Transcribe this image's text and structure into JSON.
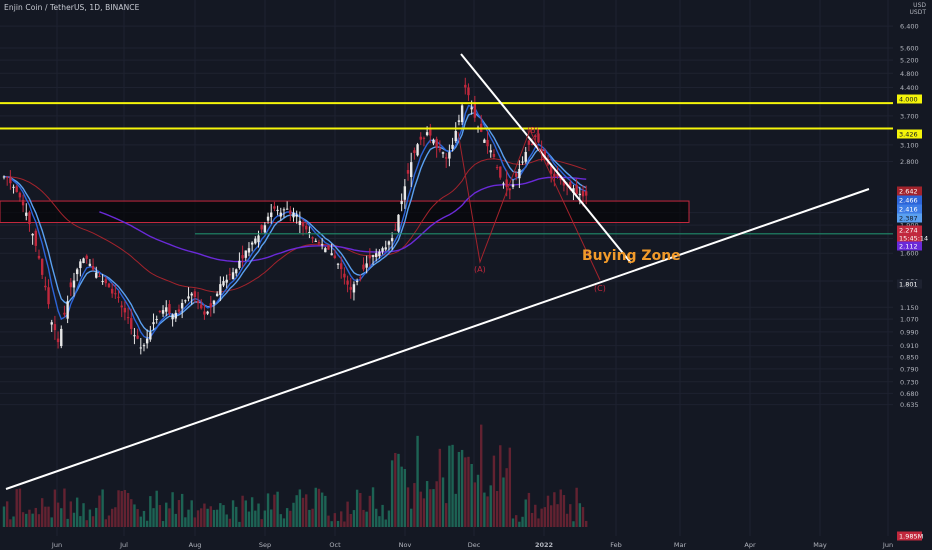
{
  "header": {
    "title": "Enjin Coin / TetherUS, 1D, BINANCE"
  },
  "currency": [
    "USD",
    "USDT"
  ],
  "colors": {
    "background": "#141823",
    "grid": "#1e2230",
    "up": "#e8e8e8",
    "down": "#c1283d",
    "level": "#f5f50a",
    "trendline": "#ffffff",
    "ema_fast": "#2c64d8",
    "ema_mid": "#5aa0f0",
    "ma_red": "#a3232c",
    "ma_purple": "#6a2ad8",
    "zone": "#c1283d",
    "annotation": "#f19a2a",
    "support": "#1e8a6a"
  },
  "chart_data": {
    "type": "candlestick",
    "title": "Enjin Coin / TetherUS, 1D, BINANCE",
    "scale": "log",
    "ylim": [
      0.62,
      6.9
    ],
    "x_ticks": [
      "Jun",
      "Jul",
      "Aug",
      "Sep",
      "Oct",
      "Nov",
      "Dec",
      "2022",
      "Feb",
      "Mar",
      "Apr",
      "May",
      "Jun"
    ],
    "y_ticks": [
      "6.400",
      "5.600",
      "5.200",
      "4.800",
      "4.400",
      "3.700",
      "3.100",
      "2.800",
      "2.050",
      "1.900",
      "1.750",
      "1.600",
      "1.350",
      "1.150",
      "1.070",
      "0.990",
      "0.910",
      "0.850",
      "0.790",
      "0.730",
      "0.680",
      "0.635"
    ],
    "price_tags": [
      {
        "value": "4.000",
        "bg": "#f5f50a",
        "fg": "#141823"
      },
      {
        "value": "3.426",
        "bg": "#f5f50a",
        "fg": "#141823"
      },
      {
        "value": "2.642",
        "bg": "#a3232c",
        "fg": "#ffffff"
      },
      {
        "value": "2.466",
        "bg": "#2c64d8",
        "fg": "#ffffff"
      },
      {
        "value": "2.416",
        "bg": "#3d7ce6",
        "fg": "#ffffff"
      },
      {
        "value": "2.387",
        "bg": "#5aa0f0",
        "fg": "#141823"
      },
      {
        "value": "2.274",
        "bg": "#c1283d",
        "fg": "#ffffff"
      },
      {
        "value": "15:45:14",
        "bg": "#c1283d",
        "fg": "#ffffff"
      },
      {
        "value": "2.112",
        "bg": "#6a2ad8",
        "fg": "#ffffff"
      },
      {
        "value": "1.801",
        "bg": "#1e2230",
        "fg": "#ffffff"
      },
      {
        "value": "1.985M",
        "bg": "#c1283d",
        "fg": "#ffffff"
      }
    ],
    "horizontal_levels": [
      4.0,
      3.426
    ],
    "support_level": 1.801,
    "buying_zone": [
      1.93,
      2.2
    ],
    "annotations": {
      "buying_zone": "Buying Zone",
      "wave_a": "(A)",
      "wave_b": "(B)",
      "wave_c": "(C)"
    },
    "close_series": [
      2.55,
      2.4,
      2.25,
      2.05,
      1.8,
      1.55,
      1.3,
      1.05,
      0.93,
      1.1,
      1.3,
      1.45,
      1.55,
      1.5,
      1.42,
      1.35,
      1.3,
      1.25,
      1.15,
      1.08,
      0.97,
      0.9,
      0.95,
      1.05,
      1.12,
      1.15,
      1.1,
      1.12,
      1.2,
      1.25,
      1.18,
      1.1,
      1.15,
      1.25,
      1.35,
      1.4,
      1.45,
      1.55,
      1.65,
      1.75,
      1.85,
      2.0,
      2.1,
      2.05,
      2.1,
      2.05,
      1.95,
      1.85,
      1.75,
      1.7,
      1.65,
      1.6,
      1.5,
      1.38,
      1.28,
      1.35,
      1.45,
      1.55,
      1.6,
      1.65,
      1.72,
      1.85,
      2.2,
      2.6,
      2.95,
      3.2,
      3.35,
      3.2,
      3.0,
      2.85,
      3.1,
      3.6,
      4.4,
      3.9,
      3.45,
      3.2,
      3.0,
      2.7,
      2.45,
      2.35,
      2.55,
      2.8,
      3.1,
      3.25,
      2.95,
      2.75,
      2.55,
      2.5,
      2.42,
      2.38,
      2.3,
      2.274
    ]
  }
}
